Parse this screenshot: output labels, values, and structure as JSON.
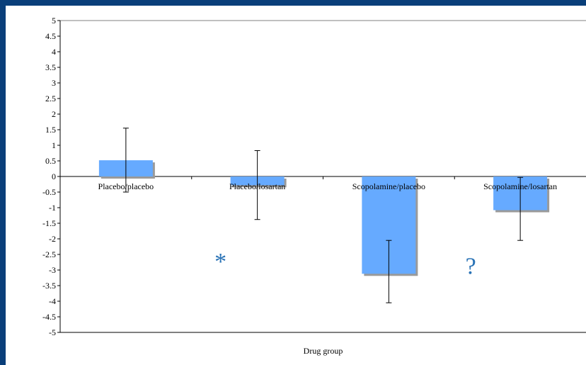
{
  "chart_data": {
    "type": "bar",
    "title": "",
    "xlabel": "Drug group",
    "ylabel": "",
    "ylim": [
      -5,
      5
    ],
    "ytick_step": 0.5,
    "yticks": [
      "5",
      "4.5",
      "4",
      "3.5",
      "3",
      "2.5",
      "2",
      "1.5",
      "1",
      "0.5",
      "0",
      "-0.5",
      "-1",
      "-1.5",
      "-2",
      "-2.5",
      "-3",
      "-3.5",
      "-4",
      "-4.5",
      "-5"
    ],
    "categories": [
      "Placebo/placebo",
      "Placebo/losartan",
      "Scopolamine/placebo",
      "Scopolamine/losartan"
    ],
    "values": [
      0.52,
      -0.28,
      -3.12,
      -1.08
    ],
    "error_bars": [
      {
        "low": -0.5,
        "high": 1.55
      },
      {
        "low": -1.38,
        "high": 0.83
      },
      {
        "low": -4.05,
        "high": -2.05
      },
      {
        "low": -2.05,
        "high": -0.03
      }
    ],
    "annotations": [
      {
        "text": "*",
        "x_between": [
          1,
          1
        ],
        "y": -2.75
      },
      {
        "text": "?",
        "x_between": [
          3,
          3
        ],
        "y": -2.9
      }
    ],
    "grid": false,
    "legend": "none"
  },
  "colors": {
    "bar_fill": "#66aaff",
    "bar_shadow": "#9a9a9a",
    "background": "#0a3f7a",
    "annotation": "#2a73b6"
  }
}
